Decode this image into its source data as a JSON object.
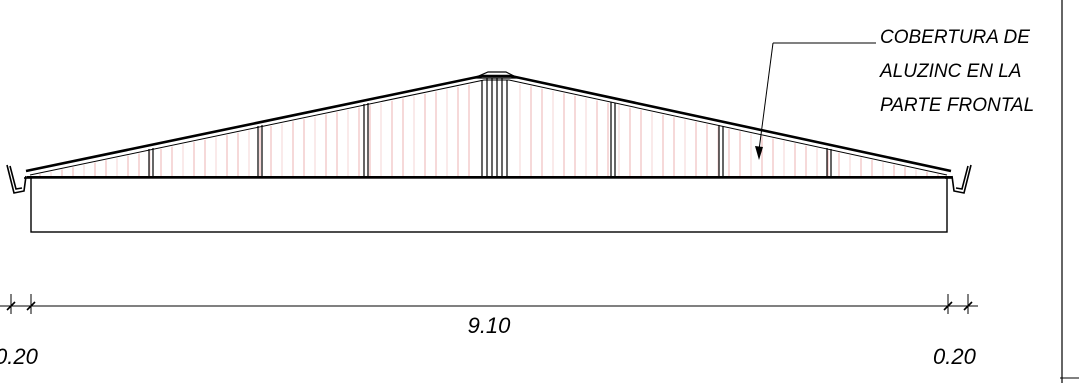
{
  "annotation": {
    "lines": [
      "COBERTURA DE",
      "ALUZINC EN LA",
      "PARTE FRONTAL"
    ]
  },
  "dimensions": {
    "main": "9.10",
    "left": "0.20",
    "right": "0.20"
  },
  "colors": {
    "ink": "#000000",
    "cladding": "#e8a0a0"
  }
}
